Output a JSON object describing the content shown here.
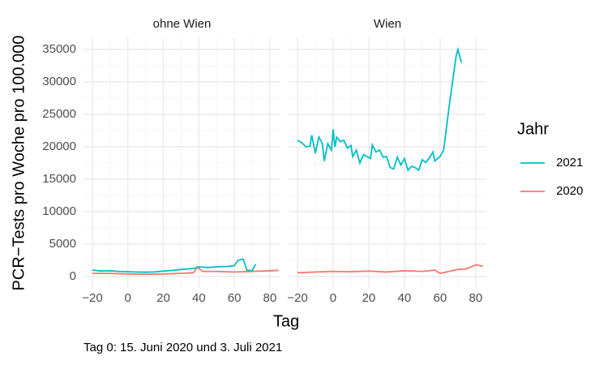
{
  "y_label": "PCR−Tests pro Woche pro 100.000",
  "x_label": "Tag",
  "caption": "Tag 0: 15. Juni 2020 und 3. Juli 2021",
  "legend_title": "Jahr",
  "chart_data": [
    {
      "type": "line",
      "title": "ohne Wien",
      "xlim": [
        -25,
        86
      ],
      "xticks": [
        {
          "value": -20,
          "label": "−20"
        },
        0,
        20,
        40,
        60,
        80
      ],
      "ylim": [
        -1750,
        36750
      ],
      "yticks": [
        0,
        5000,
        10000,
        15000,
        20000,
        25000,
        30000,
        35000
      ],
      "grid": true,
      "series": [
        {
          "name": "2021",
          "color": "#00BFC4",
          "x": [
            -20,
            -15,
            -10,
            -5,
            0,
            5,
            10,
            15,
            20,
            25,
            30,
            35,
            38,
            40,
            45,
            50,
            55,
            58,
            60,
            62,
            65,
            67,
            70,
            72
          ],
          "values": [
            1000,
            850,
            900,
            800,
            750,
            700,
            680,
            720,
            850,
            950,
            1100,
            1200,
            1300,
            1500,
            1400,
            1500,
            1550,
            1600,
            1700,
            2500,
            2700,
            1000,
            900,
            1900
          ]
        },
        {
          "name": "2020",
          "color": "#F8766D",
          "x": [
            -20,
            -10,
            0,
            10,
            20,
            30,
            37,
            39,
            42,
            50,
            60,
            70,
            80,
            85
          ],
          "values": [
            500,
            480,
            400,
            350,
            400,
            500,
            600,
            1500,
            800,
            800,
            700,
            800,
            900,
            950
          ]
        }
      ]
    },
    {
      "type": "line",
      "title": "Wien",
      "xlim": [
        -25,
        86
      ],
      "xticks": [
        {
          "value": -20,
          "label": "−20"
        },
        0,
        20,
        40,
        60,
        80
      ],
      "ylim": [
        -1750,
        36750
      ],
      "yticks": [
        0,
        5000,
        10000,
        15000,
        20000,
        25000,
        30000,
        35000
      ],
      "grid": true,
      "series": [
        {
          "name": "2021",
          "color": "#00BFC4",
          "x": [
            -20,
            -18,
            -15,
            -13,
            -12,
            -10,
            -8,
            -6,
            -5,
            -3,
            -1,
            0,
            1,
            2,
            4,
            6,
            8,
            10,
            11,
            13,
            15,
            17,
            19,
            21,
            22,
            24,
            26,
            28,
            30,
            32,
            34,
            36,
            38,
            40,
            42,
            44,
            46,
            48,
            50,
            52,
            54,
            56,
            57,
            60,
            62,
            65,
            67,
            69,
            70,
            72
          ],
          "values": [
            21000,
            20700,
            20000,
            20100,
            21800,
            19000,
            21500,
            20500,
            17800,
            20500,
            19500,
            22700,
            20000,
            21500,
            20800,
            21000,
            19800,
            20200,
            18500,
            19500,
            17500,
            18800,
            18500,
            18200,
            20300,
            19200,
            19500,
            18400,
            18500,
            16800,
            16600,
            18400,
            17200,
            18200,
            16400,
            17000,
            16800,
            16400,
            18000,
            17600,
            18300,
            19200,
            17800,
            18500,
            19500,
            26000,
            30000,
            34000,
            35000,
            33000
          ]
        },
        {
          "name": "2020",
          "color": "#F8766D",
          "x": [
            -20,
            -10,
            0,
            10,
            20,
            30,
            40,
            50,
            57,
            60,
            65,
            70,
            75,
            80,
            84
          ],
          "values": [
            600,
            700,
            800,
            750,
            850,
            700,
            900,
            800,
            1000,
            500,
            800,
            1100,
            1200,
            1800,
            1600
          ]
        }
      ]
    }
  ]
}
